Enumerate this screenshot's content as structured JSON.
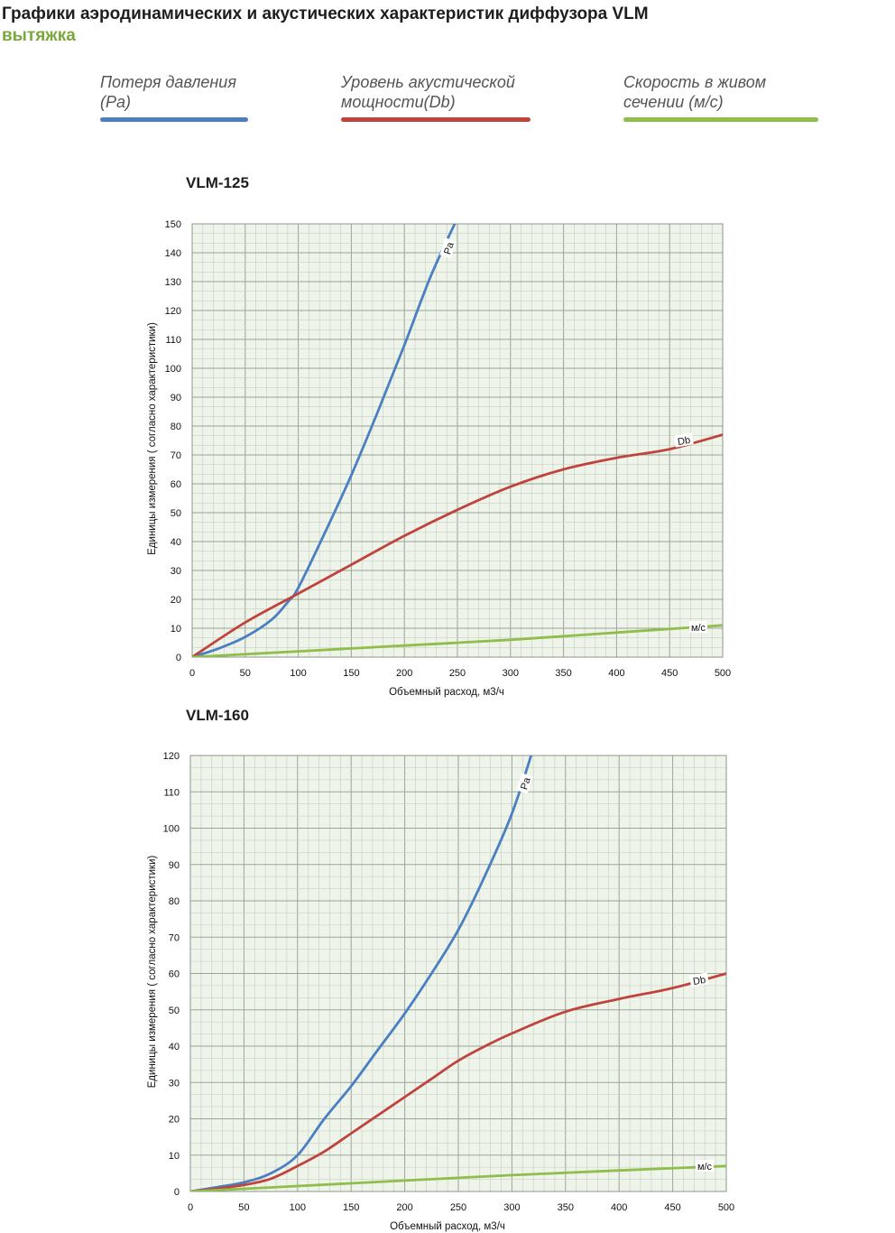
{
  "header": {
    "title": "Графики аэродинамических и акустических характеристик  диффузора VLM",
    "subtitle": "вытяжка"
  },
  "legend": [
    {
      "label": "Потеря давления\n(Ра)",
      "color": "#4a7fc1"
    },
    {
      "label": "Уровень акустической\nмощности(Db)",
      "color": "#c0443e"
    },
    {
      "label": "Скорость в живом\nсечении (м/с)",
      "color": "#8fbe4a"
    }
  ],
  "colors": {
    "grid_bg": "#eef4ea",
    "grid_major": "#9aa597",
    "grid_minor": "#c9d2c4",
    "pa": "#4a7fc1",
    "db": "#c0443e",
    "ms": "#8fbe4a"
  },
  "chart_data": [
    {
      "type": "line",
      "title": "VLM-125",
      "xlabel": "Объемный расход, м3/ч",
      "ylabel": "Единицы измерения ( согласно характеристики)",
      "xlim": [
        0,
        500
      ],
      "ylim": [
        0,
        150
      ],
      "xticks": [
        "0",
        "50",
        "100",
        "150",
        "200",
        "250",
        "300",
        "350",
        "400",
        "450",
        "500"
      ],
      "yticks": [
        "0",
        "10",
        "20",
        "30",
        "40",
        "50",
        "60",
        "70",
        "80",
        "90",
        "100",
        "110",
        "120",
        "130",
        "140",
        "150"
      ],
      "grid": true,
      "series": [
        {
          "name": "Pa",
          "color": "#4a7fc1",
          "x": [
            0,
            25,
            50,
            75,
            90,
            100,
            125,
            150,
            175,
            200,
            225,
            250
          ],
          "y": [
            0,
            3,
            7,
            13,
            19,
            24,
            43,
            63,
            85,
            108,
            132,
            152
          ]
        },
        {
          "name": "Db",
          "color": "#c0443e",
          "x": [
            0,
            50,
            100,
            150,
            200,
            250,
            300,
            350,
            400,
            450,
            500
          ],
          "y": [
            0,
            12,
            22,
            32,
            42,
            51,
            59,
            65,
            69,
            72,
            77
          ]
        },
        {
          "name": "м/с",
          "color": "#8fbe4a",
          "x": [
            0,
            100,
            200,
            300,
            400,
            500
          ],
          "y": [
            0,
            2,
            4,
            6,
            8.5,
            11
          ]
        }
      ]
    },
    {
      "type": "line",
      "title": "VLM-160",
      "xlabel": "Объемный расход, м3/ч",
      "ylabel": "Единицы измерения ( согласно характеристики)",
      "xlim": [
        0,
        500
      ],
      "ylim": [
        0,
        120
      ],
      "xticks": [
        "0",
        "50",
        "100",
        "150",
        "200",
        "250",
        "300",
        "350",
        "400",
        "450",
        "500"
      ],
      "yticks": [
        "0",
        "10",
        "20",
        "30",
        "40",
        "50",
        "60",
        "70",
        "80",
        "90",
        "100",
        "110",
        "120"
      ],
      "grid": true,
      "series": [
        {
          "name": "Pa",
          "color": "#4a7fc1",
          "x": [
            0,
            25,
            50,
            75,
            100,
            125,
            150,
            175,
            200,
            225,
            250,
            275,
            300,
            320
          ],
          "y": [
            0,
            1.2,
            2.5,
            5,
            10,
            20,
            29,
            39,
            49,
            60,
            72,
            87,
            104,
            122
          ]
        },
        {
          "name": "Db",
          "color": "#c0443e",
          "x": [
            0,
            25,
            50,
            75,
            100,
            125,
            150,
            175,
            200,
            225,
            250,
            275,
            300,
            350,
            400,
            450,
            500
          ],
          "y": [
            0,
            0.8,
            1.8,
            3.5,
            7,
            11,
            16,
            21,
            26,
            31,
            36,
            40,
            43.5,
            49.5,
            53,
            56,
            60
          ]
        },
        {
          "name": "м/с",
          "color": "#8fbe4a",
          "x": [
            0,
            100,
            200,
            300,
            400,
            500
          ],
          "y": [
            0,
            1.5,
            3,
            4.5,
            5.8,
            7
          ]
        }
      ]
    }
  ]
}
